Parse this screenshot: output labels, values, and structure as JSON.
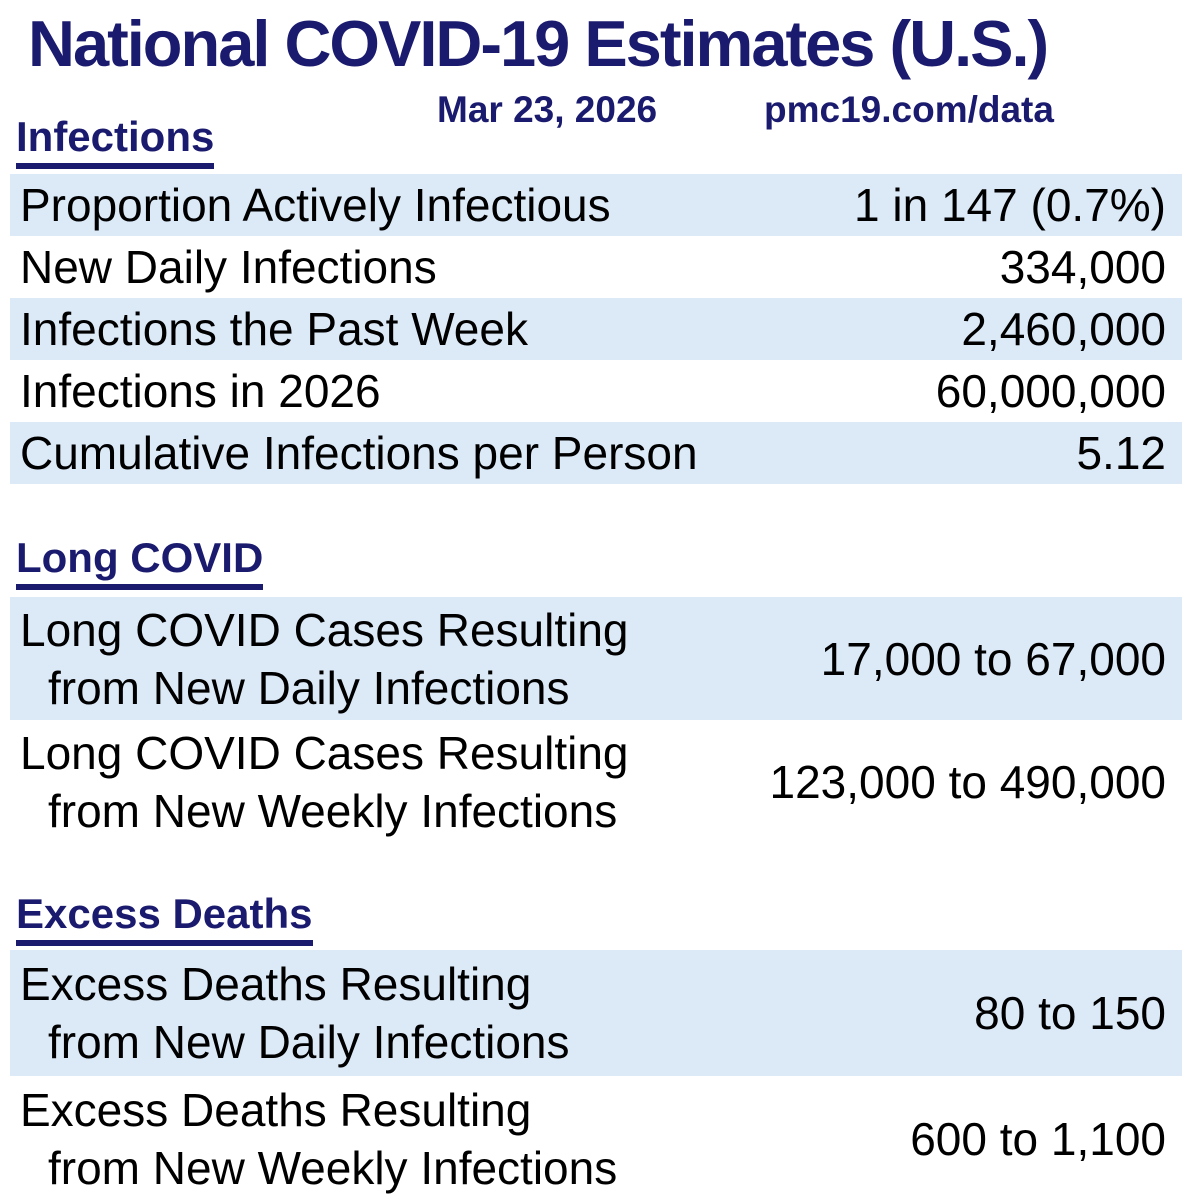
{
  "page": {
    "title": "National COVID-19 Estimates (U.S.)",
    "date": "Mar 23, 2026",
    "source_url": "pmc19.com/data"
  },
  "colors": {
    "heading_navy": "#1a1a6e",
    "row_shade_blue": "#dce9f7",
    "body_text": "#000000",
    "background": "#ffffff"
  },
  "sections": [
    {
      "heading": "Infections",
      "rows": [
        {
          "label": "Proportion Actively Infectious",
          "value": "1 in 147 (0.7%)"
        },
        {
          "label": "New Daily Infections",
          "value": "334,000"
        },
        {
          "label": "Infections the Past Week",
          "value": "2,460,000"
        },
        {
          "label": "Infections in 2026",
          "value": "60,000,000"
        },
        {
          "label": "Cumulative Infections per Person",
          "value": "5.12"
        }
      ]
    },
    {
      "heading": "Long COVID",
      "rows": [
        {
          "label_line1": "Long COVID Cases Resulting",
          "label_line2": "from New Daily Infections",
          "value": "17,000 to 67,000"
        },
        {
          "label_line1": "Long COVID Cases Resulting",
          "label_line2": "from New Weekly Infections",
          "value": "123,000 to 490,000"
        }
      ]
    },
    {
      "heading": "Excess Deaths",
      "rows": [
        {
          "label_line1": "Excess Deaths Resulting",
          "label_line2": "from New Daily Infections",
          "value": "80 to 150"
        },
        {
          "label_line1": "Excess Deaths Resulting",
          "label_line2": "from New Weekly Infections",
          "value": "600 to 1,100"
        }
      ]
    }
  ]
}
